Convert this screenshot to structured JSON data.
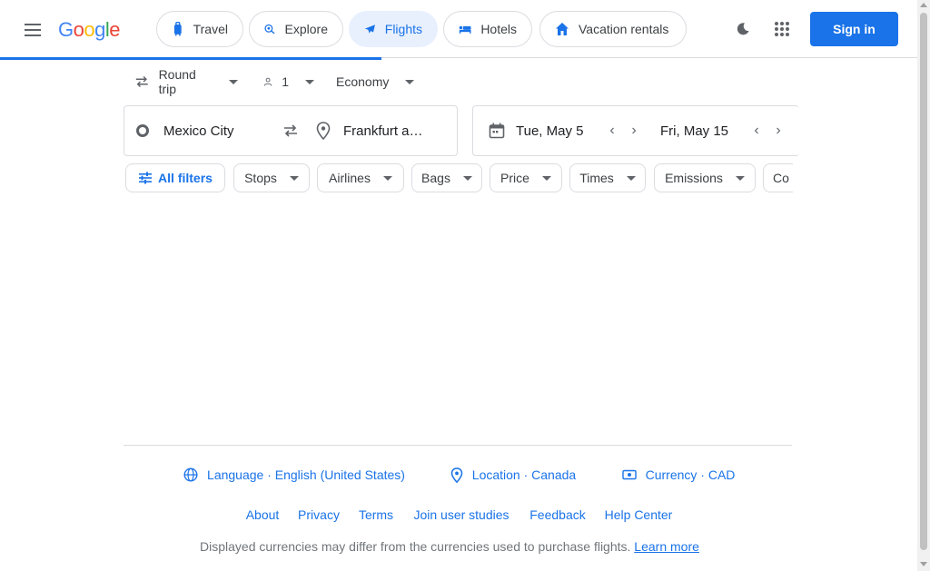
{
  "header": {
    "logo_text": "Google",
    "nav": [
      {
        "label": "Travel",
        "icon": "suitcase-icon"
      },
      {
        "label": "Explore",
        "icon": "explore-icon"
      },
      {
        "label": "Flights",
        "icon": "airplane-icon",
        "active": true
      },
      {
        "label": "Hotels",
        "icon": "bed-icon"
      },
      {
        "label": "Vacation rentals",
        "icon": "house-icon"
      }
    ],
    "signin_label": "Sign in"
  },
  "trip_options": {
    "trip_type": "Round trip",
    "passengers": "1",
    "cabin_class": "Economy"
  },
  "search": {
    "origin": "Mexico City",
    "destination": "Frankfurt a…",
    "depart_date": "Tue, May 5",
    "return_date": "Fri, May 15"
  },
  "filters": [
    {
      "label": "All filters"
    },
    {
      "label": "Stops"
    },
    {
      "label": "Airlines"
    },
    {
      "label": "Bags"
    },
    {
      "label": "Price"
    },
    {
      "label": "Times"
    },
    {
      "label": "Emissions"
    },
    {
      "label": "Co"
    }
  ],
  "footer": {
    "language": "Language · English (United States)",
    "location": "Location · Canada",
    "currency": "Currency · CAD",
    "links": [
      "About",
      "Privacy",
      "Terms",
      "Join user studies",
      "Feedback",
      "Help Center"
    ],
    "note": "Displayed currencies may differ from the currencies used to purchase flights.",
    "learn_more": "Learn more"
  },
  "colors": {
    "accent": "#1a73e8",
    "active_chip_bg": "#e8f0fe",
    "border": "#dadce0"
  }
}
